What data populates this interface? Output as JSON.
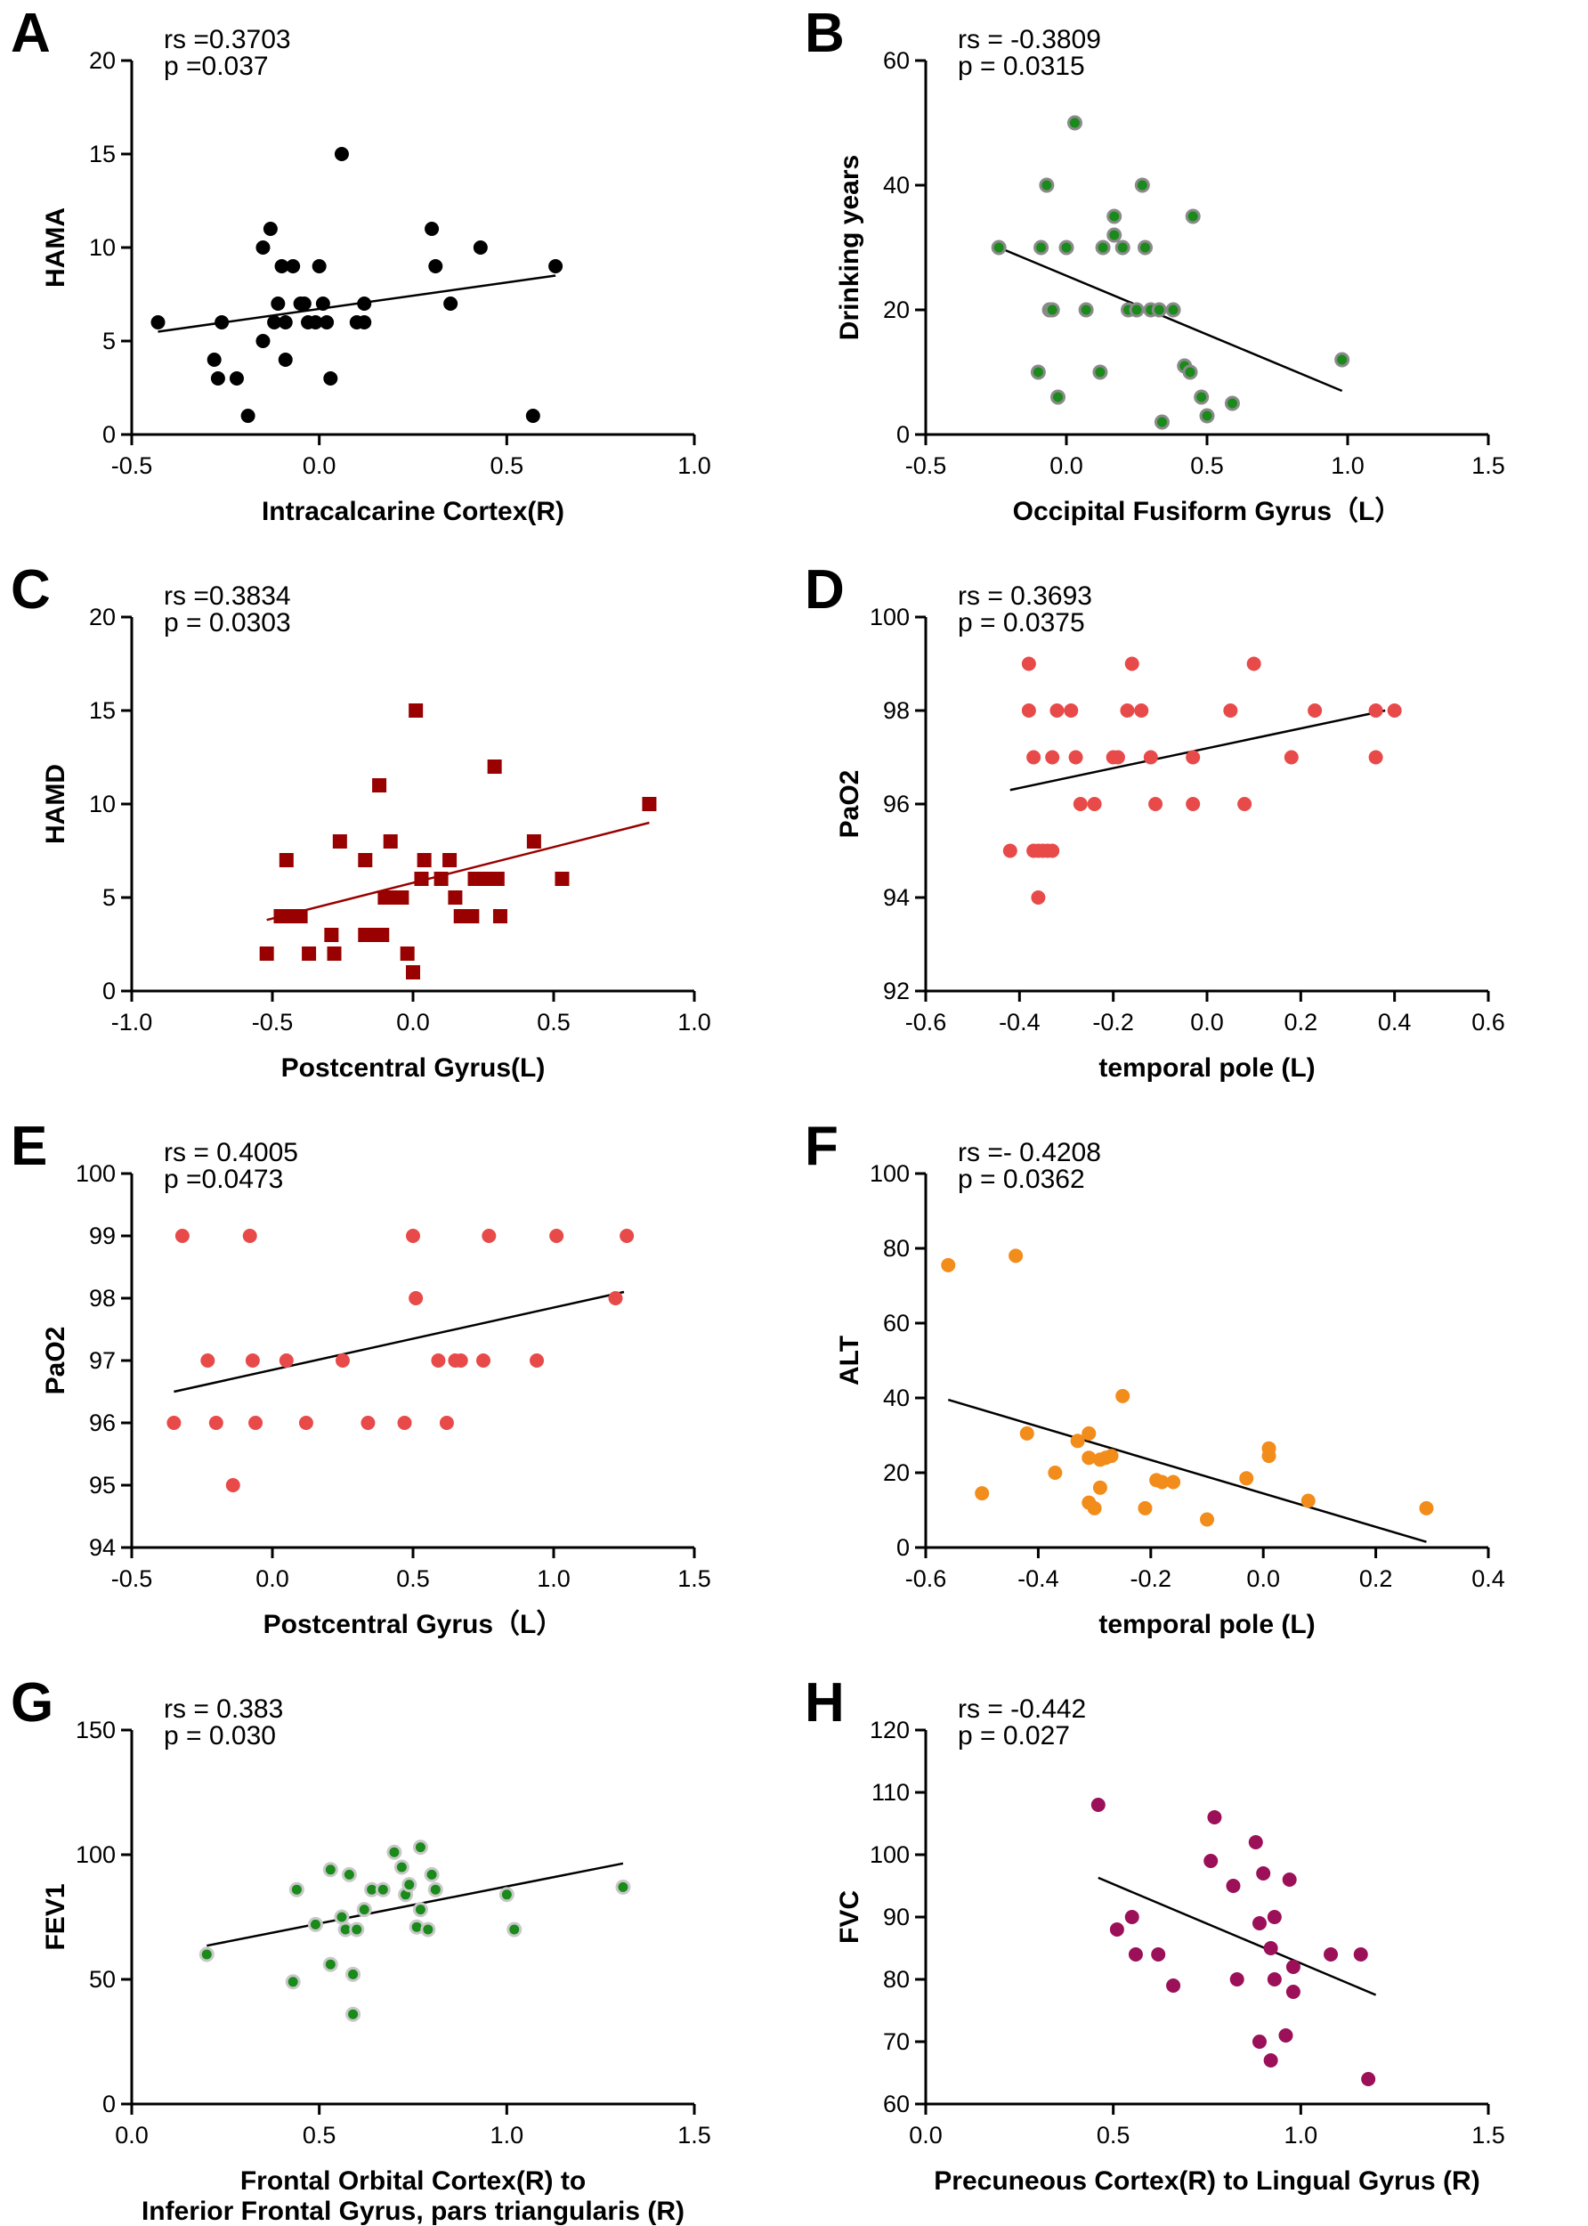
{
  "chart_data": [
    {
      "type": "scatter",
      "panel_label": "A",
      "stat_rs": "rs =0.3703",
      "stat_p": "p =0.037",
      "xlabel": "Intracalcarine Cortex(R)",
      "xlabel2": "",
      "ylabel": "HAMA",
      "xlim": [
        -0.5,
        1.0
      ],
      "ylim": [
        0,
        20
      ],
      "xticks": [
        -0.5,
        0.0,
        0.5,
        1.0
      ],
      "xtick_labels": [
        "-0.5",
        "0.0",
        "0.5",
        "1.0"
      ],
      "yticks": [
        0,
        5,
        10,
        15,
        20
      ],
      "ytick_labels": [
        "0",
        "5",
        "10",
        "15",
        "20"
      ],
      "marker": "circle",
      "color": "#000000",
      "edge_color": "#000000",
      "trend": {
        "x1": -0.43,
        "y1": 5.5,
        "x2": 0.63,
        "y2": 8.5,
        "color": "#000000"
      },
      "points": [
        [
          -0.43,
          6
        ],
        [
          -0.28,
          4
        ],
        [
          -0.27,
          3
        ],
        [
          -0.26,
          6
        ],
        [
          -0.22,
          3
        ],
        [
          -0.19,
          1
        ],
        [
          -0.15,
          5
        ],
        [
          -0.15,
          10
        ],
        [
          -0.13,
          11
        ],
        [
          -0.12,
          6
        ],
        [
          -0.11,
          7
        ],
        [
          -0.1,
          9
        ],
        [
          -0.09,
          6
        ],
        [
          -0.09,
          4
        ],
        [
          -0.07,
          9
        ],
        [
          -0.05,
          7
        ],
        [
          -0.04,
          7
        ],
        [
          -0.03,
          6
        ],
        [
          -0.01,
          6
        ],
        [
          0.0,
          9
        ],
        [
          0.01,
          7
        ],
        [
          0.02,
          6
        ],
        [
          0.03,
          3
        ],
        [
          0.06,
          15
        ],
        [
          0.1,
          6
        ],
        [
          0.12,
          6
        ],
        [
          0.12,
          7
        ],
        [
          0.3,
          11
        ],
        [
          0.31,
          9
        ],
        [
          0.35,
          7
        ],
        [
          0.43,
          10
        ],
        [
          0.57,
          1
        ],
        [
          0.63,
          9
        ]
      ]
    },
    {
      "type": "scatter",
      "panel_label": "B",
      "stat_rs": "rs = -0.3809",
      "stat_p": "p = 0.0315",
      "xlabel": "Occipital Fusiform Gyrus（L）",
      "xlabel2": "",
      "ylabel": "Drinking years",
      "xlim": [
        -0.5,
        1.5
      ],
      "ylim": [
        0,
        60
      ],
      "xticks": [
        -0.5,
        0.0,
        0.5,
        1.0,
        1.5
      ],
      "xtick_labels": [
        "-0.5",
        "0.0",
        "0.5",
        "1.0",
        "1.5"
      ],
      "yticks": [
        0,
        20,
        40,
        60
      ],
      "ytick_labels": [
        "0",
        "20",
        "40",
        "60"
      ],
      "marker": "circle",
      "color": "#1a8a1a",
      "edge_color": "#8a8a8a",
      "trend": {
        "x1": -0.24,
        "y1": 30,
        "x2": 0.98,
        "y2": 7,
        "color": "#000000"
      },
      "points": [
        [
          -0.24,
          30
        ],
        [
          -0.1,
          10
        ],
        [
          -0.09,
          30
        ],
        [
          -0.07,
          40
        ],
        [
          -0.06,
          20
        ],
        [
          -0.05,
          20
        ],
        [
          -0.03,
          6
        ],
        [
          0.0,
          30
        ],
        [
          0.03,
          50
        ],
        [
          0.07,
          20
        ],
        [
          0.12,
          10
        ],
        [
          0.13,
          30
        ],
        [
          0.17,
          32
        ],
        [
          0.17,
          35
        ],
        [
          0.2,
          30
        ],
        [
          0.22,
          20
        ],
        [
          0.25,
          20
        ],
        [
          0.27,
          40
        ],
        [
          0.28,
          30
        ],
        [
          0.3,
          20
        ],
        [
          0.33,
          20
        ],
        [
          0.34,
          2
        ],
        [
          0.38,
          20
        ],
        [
          0.42,
          11
        ],
        [
          0.44,
          10
        ],
        [
          0.45,
          35
        ],
        [
          0.48,
          6
        ],
        [
          0.5,
          3
        ],
        [
          0.59,
          5
        ],
        [
          0.98,
          12
        ]
      ]
    },
    {
      "type": "scatter",
      "panel_label": "C",
      "stat_rs": "rs =0.3834",
      "stat_p": "p = 0.0303",
      "xlabel": "Postcentral Gyrus(L)",
      "xlabel2": "",
      "ylabel": "HAMD",
      "xlim": [
        -1.0,
        1.0
      ],
      "ylim": [
        0,
        20
      ],
      "xticks": [
        -1.0,
        -0.5,
        0.0,
        0.5,
        1.0
      ],
      "xtick_labels": [
        "-1.0",
        "-0.5",
        "0.0",
        "0.5",
        "1.0"
      ],
      "yticks": [
        0,
        5,
        10,
        15,
        20
      ],
      "ytick_labels": [
        "0",
        "5",
        "10",
        "15",
        "20"
      ],
      "marker": "square",
      "color": "#990000",
      "edge_color": "#990000",
      "trend": {
        "x1": -0.52,
        "y1": 3.8,
        "x2": 0.84,
        "y2": 9.0,
        "color": "#990000"
      },
      "points": [
        [
          -0.52,
          2
        ],
        [
          -0.47,
          4
        ],
        [
          -0.45,
          7
        ],
        [
          -0.44,
          4
        ],
        [
          -0.4,
          4
        ],
        [
          -0.37,
          2
        ],
        [
          -0.29,
          3
        ],
        [
          -0.28,
          2
        ],
        [
          -0.26,
          8
        ],
        [
          -0.17,
          7
        ],
        [
          -0.17,
          3
        ],
        [
          -0.14,
          3
        ],
        [
          -0.12,
          11
        ],
        [
          -0.11,
          3
        ],
        [
          -0.1,
          5
        ],
        [
          -0.08,
          8
        ],
        [
          -0.06,
          5
        ],
        [
          -0.04,
          5
        ],
        [
          -0.02,
          2
        ],
        [
          0.0,
          1
        ],
        [
          0.01,
          15
        ],
        [
          0.03,
          6
        ],
        [
          0.04,
          7
        ],
        [
          0.1,
          6
        ],
        [
          0.13,
          7
        ],
        [
          0.15,
          5
        ],
        [
          0.17,
          4
        ],
        [
          0.21,
          4
        ],
        [
          0.22,
          6
        ],
        [
          0.27,
          6
        ],
        [
          0.29,
          12
        ],
        [
          0.3,
          6
        ],
        [
          0.31,
          4
        ],
        [
          0.43,
          8
        ],
        [
          0.53,
          6
        ],
        [
          0.84,
          10
        ]
      ]
    },
    {
      "type": "scatter",
      "panel_label": "D",
      "stat_rs": "rs = 0.3693",
      "stat_p": "p = 0.0375",
      "xlabel": "temporal pole (L)",
      "xlabel2": "",
      "ylabel": "PaO2",
      "xlim": [
        -0.6,
        0.6
      ],
      "ylim": [
        92,
        100
      ],
      "xticks": [
        -0.6,
        -0.4,
        -0.2,
        0.0,
        0.2,
        0.4,
        0.6
      ],
      "xtick_labels": [
        "-0.6",
        "-0.4",
        "-0.2",
        "0.0",
        "0.2",
        "0.4",
        "0.6"
      ],
      "yticks": [
        92,
        94,
        96,
        98,
        100
      ],
      "ytick_labels": [
        "92",
        "94",
        "96",
        "98",
        "100"
      ],
      "marker": "circle",
      "color": "#e84a4a",
      "edge_color": "#e84a4a",
      "trend": {
        "x1": -0.42,
        "y1": 96.3,
        "x2": 0.38,
        "y2": 98.0,
        "color": "#000000"
      },
      "points": [
        [
          -0.42,
          95
        ],
        [
          -0.38,
          98
        ],
        [
          -0.38,
          99
        ],
        [
          -0.37,
          97
        ],
        [
          -0.37,
          95
        ],
        [
          -0.36,
          94
        ],
        [
          -0.36,
          95
        ],
        [
          -0.35,
          95
        ],
        [
          -0.34,
          95
        ],
        [
          -0.33,
          97
        ],
        [
          -0.33,
          95
        ],
        [
          -0.32,
          98
        ],
        [
          -0.29,
          98
        ],
        [
          -0.28,
          97
        ],
        [
          -0.27,
          96
        ],
        [
          -0.24,
          96
        ],
        [
          -0.2,
          97
        ],
        [
          -0.19,
          97
        ],
        [
          -0.17,
          98
        ],
        [
          -0.16,
          99
        ],
        [
          -0.14,
          98
        ],
        [
          -0.12,
          97
        ],
        [
          -0.11,
          96
        ],
        [
          -0.03,
          97
        ],
        [
          -0.03,
          96
        ],
        [
          0.05,
          98
        ],
        [
          0.08,
          96
        ],
        [
          0.1,
          99
        ],
        [
          0.18,
          97
        ],
        [
          0.23,
          98
        ],
        [
          0.36,
          97
        ],
        [
          0.36,
          98
        ],
        [
          0.4,
          98
        ]
      ]
    },
    {
      "type": "scatter",
      "panel_label": "E",
      "stat_rs": "rs = 0.4005",
      "stat_p": "p =0.0473",
      "xlabel": "Postcentral Gyrus（L）",
      "xlabel2": "",
      "ylabel": "PaO2",
      "xlim": [
        -0.5,
        1.5
      ],
      "ylim": [
        94,
        100
      ],
      "xticks": [
        -0.5,
        0.0,
        0.5,
        1.0,
        1.5
      ],
      "xtick_labels": [
        "-0.5",
        "0.0",
        "0.5",
        "1.0",
        "1.5"
      ],
      "yticks": [
        94,
        95,
        96,
        97,
        98,
        99,
        100
      ],
      "ytick_labels": [
        "94",
        "95",
        "96",
        "97",
        "98",
        "99",
        "100"
      ],
      "marker": "circle",
      "color": "#e84a4a",
      "edge_color": "#e84a4a",
      "trend": {
        "x1": -0.35,
        "y1": 96.5,
        "x2": 1.25,
        "y2": 98.1,
        "color": "#000000"
      },
      "points": [
        [
          -0.35,
          96
        ],
        [
          -0.32,
          99
        ],
        [
          -0.23,
          97
        ],
        [
          -0.2,
          96
        ],
        [
          -0.14,
          95
        ],
        [
          -0.08,
          99
        ],
        [
          -0.07,
          97
        ],
        [
          -0.06,
          96
        ],
        [
          0.05,
          97
        ],
        [
          0.12,
          96
        ],
        [
          0.25,
          97
        ],
        [
          0.34,
          96
        ],
        [
          0.47,
          96
        ],
        [
          0.5,
          99
        ],
        [
          0.51,
          98
        ],
        [
          0.59,
          97
        ],
        [
          0.62,
          96
        ],
        [
          0.65,
          97
        ],
        [
          0.67,
          97
        ],
        [
          0.75,
          97
        ],
        [
          0.77,
          99
        ],
        [
          0.94,
          97
        ],
        [
          1.01,
          99
        ],
        [
          1.22,
          98
        ],
        [
          1.26,
          99
        ]
      ]
    },
    {
      "type": "scatter",
      "panel_label": "F",
      "stat_rs": "rs =- 0.4208",
      "stat_p": "p = 0.0362",
      "xlabel": "temporal pole (L)",
      "xlabel2": "",
      "ylabel": "ALT",
      "xlim": [
        -0.6,
        0.4
      ],
      "ylim": [
        0,
        100
      ],
      "xticks": [
        -0.6,
        -0.4,
        -0.2,
        0.0,
        0.2,
        0.4
      ],
      "xtick_labels": [
        "-0.6",
        "-0.4",
        "-0.2",
        "0.0",
        "0.2",
        "0.4"
      ],
      "yticks": [
        0,
        20,
        40,
        60,
        80,
        100
      ],
      "ytick_labels": [
        "0",
        "20",
        "40",
        "60",
        "80",
        "100"
      ],
      "marker": "circle",
      "color": "#f28c1a",
      "edge_color": "#f28c1a",
      "trend": {
        "x1": -0.56,
        "y1": 39.5,
        "x2": 0.29,
        "y2": 1.5,
        "color": "#000000"
      },
      "points": [
        [
          -0.56,
          75.5
        ],
        [
          -0.5,
          14.5
        ],
        [
          -0.44,
          78
        ],
        [
          -0.42,
          30.5
        ],
        [
          -0.37,
          20
        ],
        [
          -0.33,
          28.5
        ],
        [
          -0.31,
          24
        ],
        [
          -0.31,
          12
        ],
        [
          -0.31,
          30.5
        ],
        [
          -0.3,
          10.5
        ],
        [
          -0.29,
          16
        ],
        [
          -0.29,
          23.5
        ],
        [
          -0.28,
          24
        ],
        [
          -0.27,
          24.5
        ],
        [
          -0.25,
          40.5
        ],
        [
          -0.21,
          10.5
        ],
        [
          -0.19,
          18
        ],
        [
          -0.18,
          17.5
        ],
        [
          -0.16,
          17.5
        ],
        [
          -0.1,
          7.5
        ],
        [
          -0.03,
          18.5
        ],
        [
          0.01,
          26.5
        ],
        [
          0.01,
          24.5
        ],
        [
          0.08,
          12.5
        ],
        [
          0.29,
          10.5
        ]
      ]
    },
    {
      "type": "scatter",
      "panel_label": "G",
      "stat_rs": "rs = 0.383",
      "stat_p": "p = 0.030",
      "xlabel": "Frontal Orbital Cortex(R) to",
      "xlabel2": "Inferior Frontal Gyrus, pars triangularis (R)",
      "ylabel": "FEV1",
      "xlim": [
        0.0,
        1.5
      ],
      "ylim": [
        0,
        150
      ],
      "xticks": [
        0.0,
        0.5,
        1.0,
        1.5
      ],
      "xtick_labels": [
        "0.0",
        "0.5",
        "1.0",
        "1.5"
      ],
      "yticks": [
        0,
        50,
        100,
        150
      ],
      "ytick_labels": [
        "0",
        "50",
        "100",
        "150"
      ],
      "marker": "circle",
      "color": "#1a8a1a",
      "edge_color": "#c8c8c8",
      "trend": {
        "x1": 0.2,
        "y1": 63.5,
        "x2": 1.31,
        "y2": 96.5,
        "color": "#000000"
      },
      "points": [
        [
          0.2,
          60
        ],
        [
          0.43,
          49
        ],
        [
          0.44,
          86
        ],
        [
          0.49,
          72
        ],
        [
          0.53,
          56
        ],
        [
          0.53,
          94
        ],
        [
          0.56,
          75
        ],
        [
          0.57,
          70
        ],
        [
          0.58,
          92
        ],
        [
          0.59,
          52
        ],
        [
          0.59,
          36
        ],
        [
          0.6,
          70
        ],
        [
          0.62,
          78
        ],
        [
          0.64,
          86
        ],
        [
          0.67,
          86
        ],
        [
          0.7,
          101
        ],
        [
          0.72,
          95
        ],
        [
          0.73,
          84
        ],
        [
          0.74,
          88
        ],
        [
          0.76,
          71
        ],
        [
          0.77,
          103
        ],
        [
          0.77,
          78
        ],
        [
          0.79,
          70
        ],
        [
          0.8,
          92
        ],
        [
          0.81,
          86
        ],
        [
          1.0,
          84
        ],
        [
          1.02,
          70
        ],
        [
          1.31,
          87
        ]
      ]
    },
    {
      "type": "scatter",
      "panel_label": "H",
      "stat_rs": "rs = -0.442",
      "stat_p": "p = 0.027",
      "xlabel": "Precuneous Cortex(R) to Lingual Gyrus (R)",
      "xlabel2": "",
      "ylabel": "FVC",
      "xlim": [
        0.0,
        1.5
      ],
      "ylim": [
        60,
        120
      ],
      "xticks": [
        0.0,
        0.5,
        1.0,
        1.5
      ],
      "xtick_labels": [
        "0.0",
        "0.5",
        "1.0",
        "1.5"
      ],
      "yticks": [
        60,
        70,
        80,
        90,
        100,
        110,
        120
      ],
      "ytick_labels": [
        "60",
        "70",
        "80",
        "90",
        "100",
        "110",
        "120"
      ],
      "marker": "circle",
      "color": "#9b1058",
      "edge_color": "#9b1058",
      "trend": {
        "x1": 0.46,
        "y1": 96.3,
        "x2": 1.2,
        "y2": 77.5,
        "color": "#000000"
      },
      "points": [
        [
          0.46,
          108
        ],
        [
          0.51,
          88
        ],
        [
          0.55,
          90
        ],
        [
          0.56,
          84
        ],
        [
          0.62,
          84
        ],
        [
          0.66,
          79
        ],
        [
          0.76,
          99
        ],
        [
          0.77,
          106
        ],
        [
          0.82,
          95
        ],
        [
          0.83,
          80
        ],
        [
          0.88,
          102
        ],
        [
          0.89,
          89
        ],
        [
          0.89,
          70
        ],
        [
          0.9,
          97
        ],
        [
          0.92,
          85
        ],
        [
          0.92,
          67
        ],
        [
          0.93,
          90
        ],
        [
          0.93,
          80
        ],
        [
          0.96,
          71
        ],
        [
          0.97,
          96
        ],
        [
          0.98,
          82
        ],
        [
          0.98,
          78
        ],
        [
          1.08,
          84
        ],
        [
          1.16,
          84
        ],
        [
          1.18,
          64
        ]
      ]
    }
  ]
}
